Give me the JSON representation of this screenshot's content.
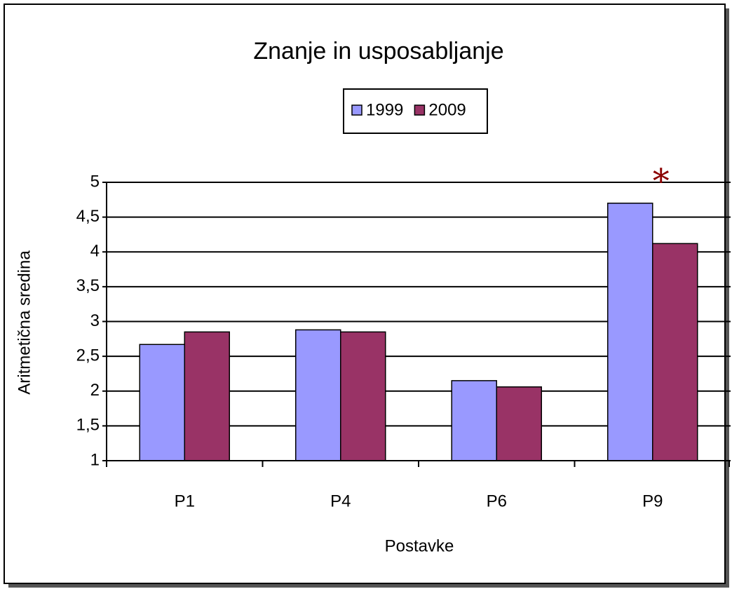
{
  "chart_data": {
    "type": "bar",
    "title": "Znanje in usposabljanje",
    "categories": [
      "P1",
      "P4",
      "P6",
      "P9"
    ],
    "series": [
      {
        "name": "1999",
        "color": "#9999ff",
        "values": [
          2.67,
          2.88,
          2.15,
          4.7
        ]
      },
      {
        "name": "2009",
        "color": "#993366",
        "values": [
          2.85,
          2.85,
          2.06,
          4.12
        ]
      }
    ],
    "ylim": [
      1,
      5
    ],
    "yticks": [
      1,
      {
        "value": 1.5,
        "label": "1,5"
      },
      2,
      {
        "value": 2.5,
        "label": "2,5"
      },
      3,
      {
        "value": 3.5,
        "label": "3,5"
      },
      4,
      {
        "value": 4.5,
        "label": "4,5"
      },
      5
    ],
    "ylabel": "Aritmetična sredina",
    "xlabel": "Postavke",
    "annotation": "*",
    "annotation_color": "#8b0000",
    "grid": true,
    "legend": "top"
  }
}
